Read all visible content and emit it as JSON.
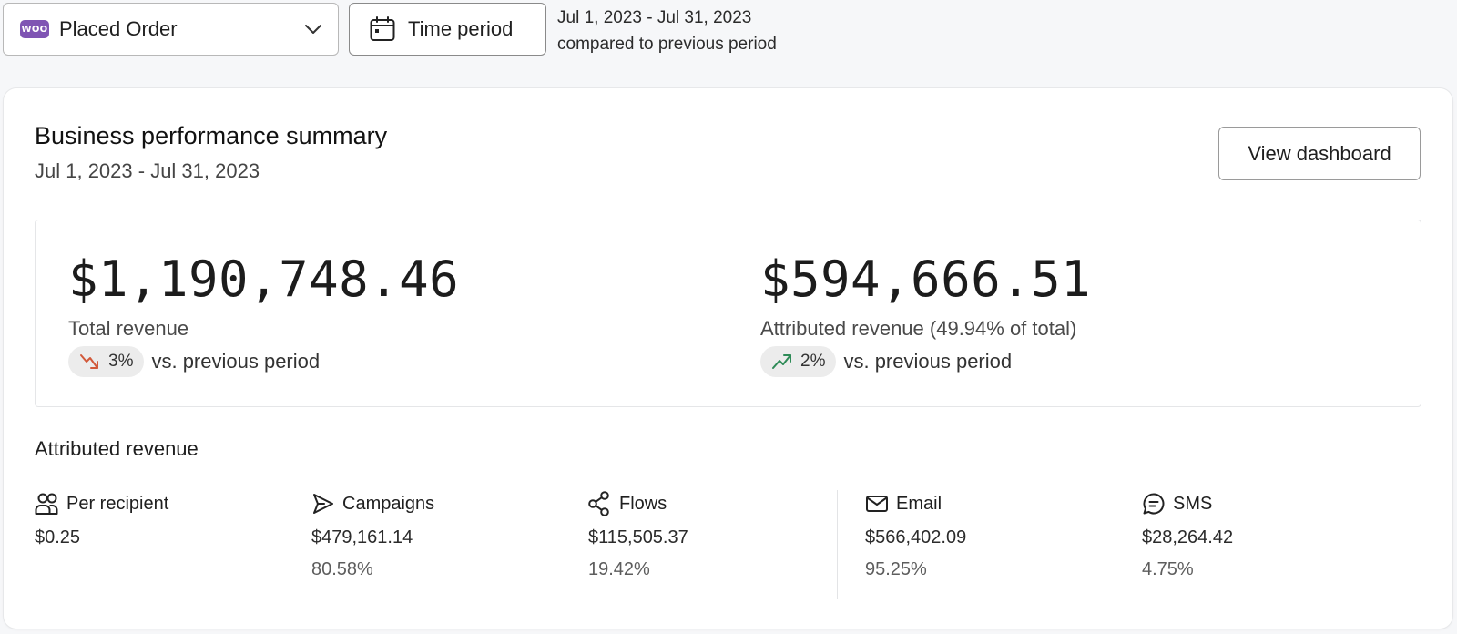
{
  "topbar": {
    "logo_text": "WOO",
    "metric": "Placed Order",
    "time_button": "Time period",
    "date_range": "Jul 1, 2023 - Jul 31, 2023",
    "comparison": "compared to previous period"
  },
  "summary": {
    "title": "Business performance summary",
    "date_range": "Jul 1, 2023 - Jul 31, 2023",
    "view_button": "View dashboard",
    "total": {
      "value": "$1,190,748.46",
      "label": "Total revenue",
      "change": "3%",
      "direction": "down",
      "vs": "vs. previous period"
    },
    "attributed": {
      "value": "$594,666.51",
      "label": "Attributed revenue (49.94% of total)",
      "change": "2%",
      "direction": "up",
      "vs": "vs. previous period"
    }
  },
  "attributed_revenue": {
    "heading": "Attributed revenue",
    "channels": [
      {
        "name": "Per recipient",
        "icon": "users-icon",
        "value": "$0.25",
        "percent": ""
      },
      {
        "name": "Campaigns",
        "icon": "send-icon",
        "value": "$479,161.14",
        "percent": "80.58%"
      },
      {
        "name": "Flows",
        "icon": "flow-icon",
        "value": "$115,505.37",
        "percent": "19.42%"
      },
      {
        "name": "Email",
        "icon": "mail-icon",
        "value": "$566,402.09",
        "percent": "95.25%"
      },
      {
        "name": "SMS",
        "icon": "sms-icon",
        "value": "$28,264.42",
        "percent": "4.75%"
      }
    ]
  },
  "colors": {
    "down": "#d2593a",
    "up": "#2e8b57",
    "woo": "#7f54b3"
  }
}
